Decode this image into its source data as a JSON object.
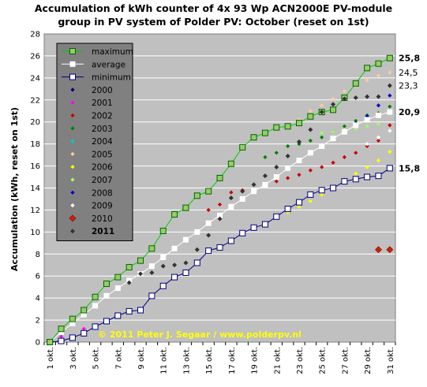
{
  "title_line1": "Accumulation of kWh counter of 4x 93 Wp ACN2000E PV-module",
  "title_line2": "group in PV system of Polder PV: October (reset on 1st)",
  "chart_data": {
    "type": "line",
    "title": "Accumulation of kWh counter of 4x 93 Wp ACN2000E PV-module group in PV system of Polder PV: October (reset on 1st)",
    "ylabel": "Accumulation (kWh, reset on 1st)",
    "xlabel": "",
    "ylim": [
      0,
      28
    ],
    "yticks": [
      0,
      2,
      4,
      6,
      8,
      10,
      12,
      14,
      16,
      18,
      20,
      22,
      24,
      26,
      28
    ],
    "categories": [
      "1 okt.",
      "2 okt.",
      "3 okt.",
      "4 okt.",
      "5 okt.",
      "6 okt.",
      "7 okt.",
      "8 okt.",
      "9 okt.",
      "10 okt.",
      "11 okt.",
      "12 okt.",
      "13 okt.",
      "14 okt.",
      "15 okt.",
      "16 okt.",
      "17 okt.",
      "18 okt.",
      "19 okt.",
      "20 okt.",
      "21 okt.",
      "22 okt.",
      "23 okt.",
      "24 okt.",
      "25 okt.",
      "26 okt.",
      "27 okt.",
      "28 okt.",
      "29 okt.",
      "30 okt.",
      "31 okt."
    ],
    "xtick_labels": [
      "1 okt.",
      "3 okt.",
      "5 okt.",
      "7 okt.",
      "9 okt.",
      "11 okt.",
      "13 okt.",
      "15 okt.",
      "17 okt.",
      "19 okt.",
      "21 okt.",
      "23 okt.",
      "25 okt.",
      "27 okt.",
      "29 okt.",
      "31 okt."
    ],
    "grid": true,
    "legend_position": "top-left",
    "credit": "© 2011 Peter J. Segaar / www.polderpv.nl",
    "end_labels": [
      {
        "text": "25,8",
        "value": 25.8,
        "color": "#000000",
        "bold": true
      },
      {
        "text": "24,5",
        "value": 24.5,
        "color": "#000000",
        "bold": false
      },
      {
        "text": "23,3",
        "value": 23.3,
        "color": "#000000",
        "bold": false
      },
      {
        "text": "20,9",
        "value": 20.9,
        "color": "#000000",
        "bold": true
      },
      {
        "text": "15,8",
        "value": 15.8,
        "color": "#000000",
        "bold": true
      }
    ],
    "series": [
      {
        "name": "maximum",
        "style": "maximum",
        "color": "#009900",
        "line": "#00cc00",
        "values": [
          0,
          1.2,
          2.1,
          2.9,
          4.1,
          5.3,
          5.9,
          6.8,
          7.4,
          8.5,
          10.1,
          11.6,
          12.2,
          13.3,
          13.7,
          14.9,
          16.2,
          17.7,
          18.6,
          19.0,
          19.5,
          19.6,
          19.9,
          20.5,
          20.9,
          21.1,
          22.2,
          23.5,
          24.9,
          25.3,
          25.8
        ]
      },
      {
        "name": "average",
        "style": "average",
        "color": "#ffffff",
        "line": "#ffffff",
        "values": [
          0,
          0.9,
          1.7,
          2.5,
          3.3,
          4.2,
          4.9,
          5.6,
          6.2,
          6.9,
          7.7,
          8.5,
          9.3,
          10.0,
          10.8,
          11.5,
          12.3,
          13.0,
          13.7,
          14.3,
          15.0,
          15.8,
          16.5,
          17.2,
          17.8,
          18.5,
          19.1,
          19.7,
          20.2,
          20.6,
          20.9
        ]
      },
      {
        "name": "minimum",
        "style": "minimum",
        "color": "#00007f",
        "line": "#00007f",
        "values": [
          0,
          0.1,
          0.4,
          0.8,
          1.4,
          1.9,
          2.4,
          2.8,
          2.9,
          4.2,
          5.1,
          5.9,
          6.3,
          7.2,
          8.3,
          8.6,
          9.2,
          9.9,
          10.4,
          10.7,
          11.4,
          12.1,
          12.7,
          13.4,
          13.8,
          14.0,
          14.6,
          14.8,
          15.0,
          15.1,
          15.8
        ]
      },
      {
        "name": "2000",
        "style": "dot",
        "color": "#00007f",
        "values": [
          null,
          null,
          null,
          null,
          null,
          null,
          null,
          null,
          null,
          null,
          null,
          null,
          null,
          null,
          null,
          null,
          null,
          null,
          null,
          null,
          null,
          null,
          null,
          null,
          null,
          null,
          null,
          null,
          null,
          null,
          null
        ]
      },
      {
        "name": "2001",
        "style": "dot",
        "color": "#ff00ff",
        "values": [
          0,
          0.5,
          null,
          1.2,
          null,
          null,
          null,
          null,
          null,
          null,
          null,
          null,
          null,
          null,
          null,
          null,
          null,
          null,
          null,
          null,
          null,
          null,
          null,
          null,
          null,
          null,
          null,
          null,
          null,
          null,
          null
        ]
      },
      {
        "name": "2002",
        "style": "dot",
        "color": "#cc0000",
        "values": [
          null,
          null,
          null,
          null,
          null,
          null,
          null,
          null,
          null,
          null,
          null,
          null,
          null,
          null,
          12.0,
          12.5,
          13.6,
          13.8,
          14.3,
          14.4,
          14.6,
          14.9,
          15.2,
          15.6,
          15.9,
          16.3,
          16.8,
          17.2,
          17.8,
          18.3,
          19.7
        ]
      },
      {
        "name": "2003",
        "style": "dot",
        "color": "#008000",
        "values": [
          null,
          null,
          null,
          null,
          null,
          null,
          null,
          null,
          null,
          null,
          null,
          null,
          null,
          null,
          null,
          null,
          null,
          null,
          null,
          16.8,
          17.2,
          17.8,
          18.0,
          18.3,
          18.6,
          19.1,
          19.6,
          20.1,
          20.6,
          20.8,
          21.4
        ]
      },
      {
        "name": "2004",
        "style": "dot",
        "color": "#00cccc",
        "values": [
          null,
          null,
          null,
          null,
          null,
          null,
          null,
          null,
          null,
          null,
          null,
          null,
          null,
          null,
          null,
          null,
          null,
          null,
          null,
          null,
          null,
          null,
          null,
          null,
          null,
          null,
          null,
          null,
          null,
          null,
          null
        ]
      },
      {
        "name": "2005",
        "style": "dot",
        "color": "#ffcc99",
        "values": [
          null,
          null,
          null,
          null,
          null,
          null,
          null,
          null,
          null,
          null,
          null,
          null,
          null,
          null,
          null,
          null,
          null,
          null,
          null,
          null,
          null,
          null,
          20.2,
          21.0,
          21.5,
          22.1,
          22.8,
          23.3,
          23.8,
          24.2,
          24.5
        ]
      },
      {
        "name": "2006",
        "style": "dot",
        "color": "#ffff00",
        "values": [
          null,
          null,
          null,
          null,
          null,
          null,
          null,
          null,
          null,
          null,
          null,
          null,
          null,
          null,
          null,
          null,
          null,
          null,
          null,
          null,
          null,
          11.8,
          12.3,
          12.8,
          13.4,
          14.0,
          14.6,
          15.3,
          15.9,
          16.5,
          17.3
        ]
      },
      {
        "name": "2007",
        "style": "dot",
        "color": "#99ff66",
        "values": [
          null,
          null,
          null,
          null,
          null,
          null,
          null,
          null,
          null,
          null,
          null,
          null,
          null,
          null,
          null,
          null,
          null,
          null,
          null,
          null,
          null,
          null,
          null,
          null,
          19.0,
          19.1,
          19.3,
          19.4,
          19.6,
          19.8,
          20.9
        ]
      },
      {
        "name": "2008",
        "style": "dot",
        "color": "#0000cc",
        "values": [
          null,
          null,
          null,
          null,
          null,
          null,
          null,
          null,
          null,
          null,
          null,
          null,
          null,
          null,
          null,
          null,
          null,
          null,
          null,
          null,
          null,
          null,
          null,
          null,
          null,
          null,
          null,
          19.9,
          20.5,
          21.5,
          22.4
        ]
      },
      {
        "name": "2009",
        "style": "dot",
        "color": "#ffffff",
        "values": [
          null,
          null,
          null,
          null,
          null,
          null,
          null,
          null,
          null,
          null,
          null,
          null,
          null,
          null,
          null,
          null,
          null,
          null,
          null,
          null,
          null,
          null,
          null,
          null,
          null,
          null,
          null,
          null,
          18.0,
          18.6,
          19.2
        ]
      },
      {
        "name": "2010",
        "style": "redsq",
        "color": "#cc0000",
        "values": [
          null,
          null,
          null,
          null,
          null,
          null,
          null,
          null,
          null,
          null,
          null,
          null,
          null,
          null,
          null,
          null,
          null,
          null,
          null,
          null,
          null,
          null,
          null,
          null,
          null,
          null,
          null,
          null,
          null,
          8.4,
          8.4
        ]
      },
      {
        "name": "2011",
        "style": "y2011",
        "color": "#333333",
        "values": [
          null,
          null,
          null,
          null,
          null,
          null,
          null,
          5.4,
          6.2,
          6.3,
          6.9,
          7.0,
          7.2,
          8.4,
          9.7,
          11.2,
          13.1,
          13.7,
          14.3,
          15.1,
          15.9,
          16.9,
          18.2,
          19.3,
          20.9,
          21.6,
          22.1,
          22.2,
          22.3,
          22.3,
          23.3
        ]
      }
    ]
  }
}
